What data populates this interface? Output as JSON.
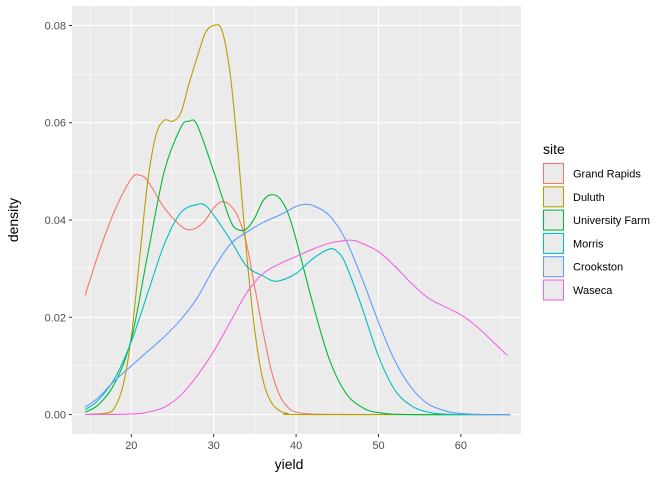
{
  "chart_data": {
    "type": "line",
    "xlabel": "yield",
    "ylabel": "density",
    "xlim": [
      12.8,
      67.3
    ],
    "ylim": [
      -0.004,
      0.084
    ],
    "xticks": [
      20,
      30,
      40,
      50,
      60
    ],
    "yticks": [
      0.0,
      0.02,
      0.04,
      0.06,
      0.08
    ],
    "xtick_labels": [
      "20",
      "30",
      "40",
      "50",
      "60"
    ],
    "ytick_labels": [
      "0.00",
      "0.02",
      "0.04",
      "0.06",
      "0.08"
    ],
    "grid": true,
    "legend": {
      "title": "site",
      "position": "right"
    },
    "series": [
      {
        "name": "Grand Rapids",
        "color": "#F8766D",
        "points": [
          [
            14.4,
            0.0245
          ],
          [
            16,
            0.033
          ],
          [
            18,
            0.042
          ],
          [
            20,
            0.0485
          ],
          [
            21,
            0.0492
          ],
          [
            22,
            0.048
          ],
          [
            24,
            0.0425
          ],
          [
            26,
            0.0388
          ],
          [
            27,
            0.038
          ],
          [
            28,
            0.0385
          ],
          [
            29,
            0.04
          ],
          [
            30,
            0.0425
          ],
          [
            31,
            0.0438
          ],
          [
            32,
            0.043
          ],
          [
            33,
            0.0405
          ],
          [
            34,
            0.035
          ],
          [
            35,
            0.026
          ],
          [
            36,
            0.017
          ],
          [
            37,
            0.009
          ],
          [
            38,
            0.004
          ],
          [
            39,
            0.0015
          ],
          [
            40,
            0.0005
          ],
          [
            42,
            0.0001
          ],
          [
            47,
            0.0
          ]
        ]
      },
      {
        "name": "Duluth",
        "color": "#B79F00",
        "points": [
          [
            14.4,
            0.0
          ],
          [
            17,
            0.0003
          ],
          [
            18,
            0.0015
          ],
          [
            19,
            0.006
          ],
          [
            20,
            0.016
          ],
          [
            21,
            0.032
          ],
          [
            22,
            0.048
          ],
          [
            23,
            0.0575
          ],
          [
            24,
            0.0605
          ],
          [
            25,
            0.0603
          ],
          [
            26,
            0.062
          ],
          [
            27,
            0.068
          ],
          [
            28,
            0.0735
          ],
          [
            29,
            0.0785
          ],
          [
            30,
            0.08
          ],
          [
            31,
            0.079
          ],
          [
            32,
            0.07
          ],
          [
            33,
            0.053
          ],
          [
            34,
            0.033
          ],
          [
            35,
            0.017
          ],
          [
            36,
            0.007
          ],
          [
            37,
            0.0025
          ],
          [
            38,
            0.0008
          ],
          [
            39,
            0.0002
          ],
          [
            41,
            0.0
          ],
          [
            66,
            0.0
          ]
        ]
      },
      {
        "name": "University Farm",
        "color": "#00BA38",
        "points": [
          [
            14.4,
            0.0005
          ],
          [
            16,
            0.002
          ],
          [
            18,
            0.0065
          ],
          [
            20,
            0.0155
          ],
          [
            22,
            0.033
          ],
          [
            24,
            0.05
          ],
          [
            26,
            0.059
          ],
          [
            27,
            0.0603
          ],
          [
            28,
            0.0595
          ],
          [
            30,
            0.05
          ],
          [
            32,
            0.04
          ],
          [
            33,
            0.038
          ],
          [
            34,
            0.0382
          ],
          [
            35,
            0.0405
          ],
          [
            36,
            0.044
          ],
          [
            37,
            0.0452
          ],
          [
            38,
            0.0445
          ],
          [
            39,
            0.0415
          ],
          [
            40,
            0.036
          ],
          [
            42,
            0.023
          ],
          [
            44,
            0.0115
          ],
          [
            46,
            0.0045
          ],
          [
            48,
            0.0015
          ],
          [
            50,
            0.0004
          ],
          [
            54,
            0.0
          ],
          [
            66,
            0.0
          ]
        ]
      },
      {
        "name": "Morris",
        "color": "#00BFC4",
        "points": [
          [
            14.4,
            0.001
          ],
          [
            16,
            0.003
          ],
          [
            18,
            0.0075
          ],
          [
            20,
            0.015
          ],
          [
            22,
            0.025
          ],
          [
            24,
            0.035
          ],
          [
            26,
            0.0415
          ],
          [
            28,
            0.0432
          ],
          [
            29,
            0.043
          ],
          [
            30,
            0.041
          ],
          [
            32,
            0.036
          ],
          [
            34,
            0.0305
          ],
          [
            36,
            0.0285
          ],
          [
            37,
            0.0276
          ],
          [
            38,
            0.0275
          ],
          [
            40,
            0.029
          ],
          [
            42,
            0.032
          ],
          [
            44,
            0.034
          ],
          [
            45,
            0.0335
          ],
          [
            46,
            0.031
          ],
          [
            48,
            0.022
          ],
          [
            50,
            0.012
          ],
          [
            52,
            0.005
          ],
          [
            54,
            0.0018
          ],
          [
            56,
            0.0005
          ],
          [
            58,
            0.0001
          ],
          [
            62,
            0.0
          ],
          [
            66,
            0.0
          ]
        ]
      },
      {
        "name": "Crookston",
        "color": "#619CFF",
        "points": [
          [
            14.4,
            0.0015
          ],
          [
            16,
            0.0035
          ],
          [
            18,
            0.007
          ],
          [
            20,
            0.01
          ],
          [
            22,
            0.013
          ],
          [
            24,
            0.016
          ],
          [
            26,
            0.0195
          ],
          [
            28,
            0.024
          ],
          [
            30,
            0.03
          ],
          [
            32,
            0.035
          ],
          [
            34,
            0.0375
          ],
          [
            36,
            0.0395
          ],
          [
            38,
            0.041
          ],
          [
            40,
            0.0428
          ],
          [
            41,
            0.0432
          ],
          [
            42,
            0.043
          ],
          [
            44,
            0.041
          ],
          [
            46,
            0.036
          ],
          [
            48,
            0.028
          ],
          [
            50,
            0.019
          ],
          [
            52,
            0.011
          ],
          [
            54,
            0.0055
          ],
          [
            56,
            0.0022
          ],
          [
            58,
            0.0008
          ],
          [
            60,
            0.0002
          ],
          [
            63,
            0.0
          ],
          [
            66,
            0.0
          ]
        ]
      },
      {
        "name": "Waseca",
        "color": "#F564E3",
        "points": [
          [
            14.4,
            0.0
          ],
          [
            20,
            0.0001
          ],
          [
            22,
            0.0005
          ],
          [
            24,
            0.0015
          ],
          [
            26,
            0.004
          ],
          [
            28,
            0.008
          ],
          [
            30,
            0.013
          ],
          [
            32,
            0.019
          ],
          [
            34,
            0.025
          ],
          [
            36,
            0.029
          ],
          [
            38,
            0.031
          ],
          [
            40,
            0.0325
          ],
          [
            42,
            0.034
          ],
          [
            44,
            0.0352
          ],
          [
            46,
            0.0358
          ],
          [
            47,
            0.0358
          ],
          [
            48,
            0.0352
          ],
          [
            50,
            0.0335
          ],
          [
            52,
            0.0305
          ],
          [
            54,
            0.027
          ],
          [
            56,
            0.024
          ],
          [
            58,
            0.0222
          ],
          [
            60,
            0.0205
          ],
          [
            62,
            0.018
          ],
          [
            64,
            0.0148
          ],
          [
            65.6,
            0.0122
          ]
        ]
      }
    ]
  }
}
